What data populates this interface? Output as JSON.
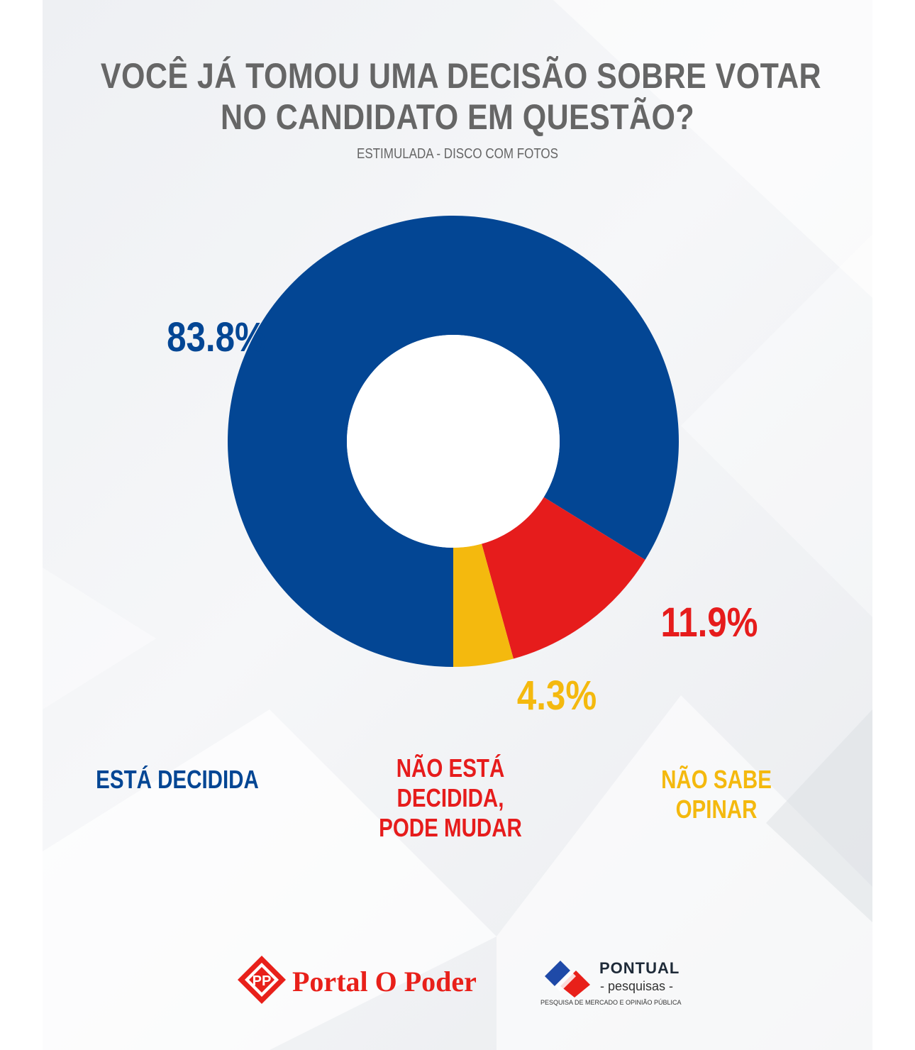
{
  "title_line1": "VOCÊ JÁ TOMOU UMA DECISÃO SOBRE VOTAR",
  "title_line2": "NO CANDIDATO EM QUESTÃO?",
  "subtitle": "ESTIMULADA - DISCO COM FOTOS",
  "chart_data": {
    "type": "pie",
    "donut": true,
    "title": "VOCÊ JÁ TOMOU UMA DECISÃO SOBRE VOTAR NO CANDIDATO EM QUESTÃO?",
    "subtitle": "ESTIMULADA - DISCO COM FOTOS",
    "slices": [
      {
        "label": "ESTÁ DECIDIDA",
        "value": 83.8,
        "display": "83.8%",
        "color": "#034694"
      },
      {
        "label": "NÃO ESTÁ DECIDIDA, PODE MUDAR",
        "value": 11.9,
        "display": "11.9%",
        "color": "#e61c1c"
      },
      {
        "label": "NÃO SABE OPINAR",
        "value": 4.3,
        "display": "4.3%",
        "color": "#f4b90e"
      }
    ]
  },
  "legend": {
    "item1": "ESTÁ DECIDIDA",
    "item2_line1": "NÃO ESTÁ DECIDIDA,",
    "item2_line2": "PODE MUDAR",
    "item3": "NÃO SABE OPINAR"
  },
  "logos": {
    "portal": "Portal O Poder",
    "pontual_name": "PONTUAL",
    "pontual_sub": "- pesquisas -",
    "pontual_tagline": "PESQUISA DE MERCADO E OPINIÃO PÚBLICA"
  }
}
